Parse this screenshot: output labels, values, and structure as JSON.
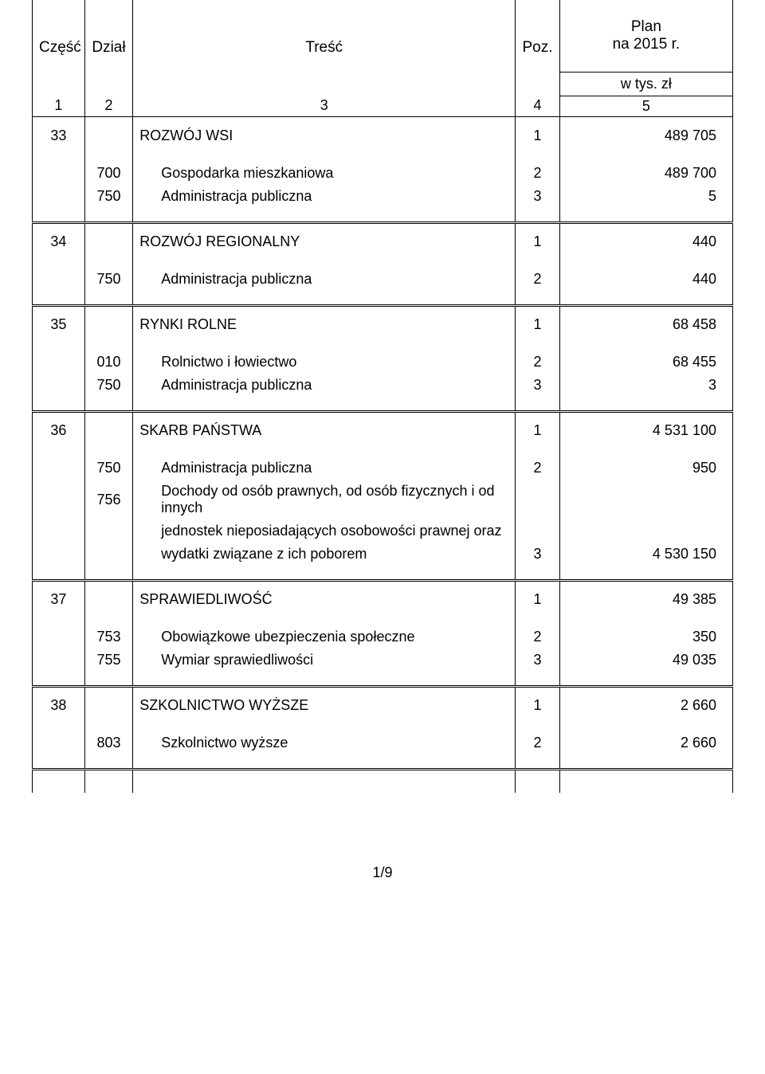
{
  "header": {
    "col1": "Część",
    "col2": "Dział",
    "col3": "Treść",
    "col4": "Poz.",
    "col5": "Plan\nna 2015 r.",
    "col5_sub": "w tys. zł",
    "n1": "1",
    "n2": "2",
    "n3": "3",
    "n4": "4",
    "n5": "5"
  },
  "sections": [
    {
      "czesc": "33",
      "title": "ROZWÓJ WSI",
      "poz": "1",
      "plan": "489 705",
      "rows": [
        {
          "dzial": "700",
          "tresc": "Gospodarka mieszkaniowa",
          "poz": "2",
          "plan": "489 700"
        },
        {
          "dzial": "750",
          "tresc": "Administracja publiczna",
          "poz": "3",
          "plan": "5"
        }
      ]
    },
    {
      "czesc": "34",
      "title": "ROZWÓJ REGIONALNY",
      "poz": "1",
      "plan": "440",
      "rows": [
        {
          "dzial": "750",
          "tresc": "Administracja publiczna",
          "poz": "2",
          "plan": "440"
        }
      ]
    },
    {
      "czesc": "35",
      "title": "RYNKI ROLNE",
      "poz": "1",
      "plan": "68 458",
      "rows": [
        {
          "dzial": "010",
          "tresc": "Rolnictwo i łowiectwo",
          "poz": "2",
          "plan": "68 455"
        },
        {
          "dzial": "750",
          "tresc": "Administracja publiczna",
          "poz": "3",
          "plan": "3"
        }
      ]
    },
    {
      "czesc": "36",
      "title": "SKARB PAŃSTWA",
      "poz": "1",
      "plan": "4 531 100",
      "rows": [
        {
          "dzial": "750",
          "tresc": "Administracja publiczna",
          "poz": "2",
          "plan": "950"
        },
        {
          "dzial": "756",
          "tresc": "Dochody od osób prawnych, od osób fizycznych i od innych",
          "poz": "",
          "plan": ""
        },
        {
          "dzial": "",
          "tresc": "jednostek nieposiadających osobowości prawnej oraz",
          "poz": "",
          "plan": ""
        },
        {
          "dzial": "",
          "tresc": "wydatki związane z ich poborem",
          "poz": "3",
          "plan": "4 530 150"
        }
      ]
    },
    {
      "czesc": "37",
      "title": "SPRAWIEDLIWOŚĆ",
      "poz": "1",
      "plan": "49 385",
      "rows": [
        {
          "dzial": "753",
          "tresc": "Obowiązkowe ubezpieczenia społeczne",
          "poz": "2",
          "plan": "350"
        },
        {
          "dzial": "755",
          "tresc": "Wymiar sprawiedliwości",
          "poz": "3",
          "plan": "49 035"
        }
      ]
    },
    {
      "czesc": "38",
      "title": "SZKOLNICTWO WYŻSZE",
      "poz": "1",
      "plan": "2 660",
      "rows": [
        {
          "dzial": "803",
          "tresc": "Szkolnictwo wyższe",
          "poz": "2",
          "plan": "2 660"
        }
      ]
    }
  ],
  "footer": "1/9"
}
